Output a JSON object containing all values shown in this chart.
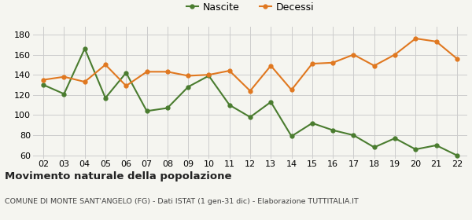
{
  "years": [
    "02",
    "03",
    "04",
    "05",
    "06",
    "07",
    "08",
    "09",
    "10",
    "11",
    "12",
    "13",
    "14",
    "15",
    "16",
    "17",
    "18",
    "19",
    "20",
    "21",
    "22"
  ],
  "nascite": [
    130,
    121,
    166,
    117,
    142,
    104,
    107,
    128,
    139,
    110,
    98,
    113,
    79,
    92,
    85,
    80,
    68,
    77,
    66,
    70,
    60
  ],
  "decessi": [
    135,
    138,
    133,
    150,
    129,
    143,
    143,
    139,
    140,
    144,
    124,
    149,
    125,
    151,
    152,
    160,
    149,
    160,
    176,
    173,
    156
  ],
  "nascite_color": "#4a7c2f",
  "decessi_color": "#e07820",
  "bg_color": "#f5f5f0",
  "grid_color": "#cccccc",
  "title": "Movimento naturale della popolazione",
  "subtitle": "COMUNE DI MONTE SANT'ANGELO (FG) - Dati ISTAT (1 gen-31 dic) - Elaborazione TUTTITALIA.IT",
  "legend_nascite": "Nascite",
  "legend_decessi": "Decessi",
  "ylim_min": 57,
  "ylim_max": 188,
  "yticks": [
    60,
    80,
    100,
    120,
    140,
    160,
    180
  ]
}
